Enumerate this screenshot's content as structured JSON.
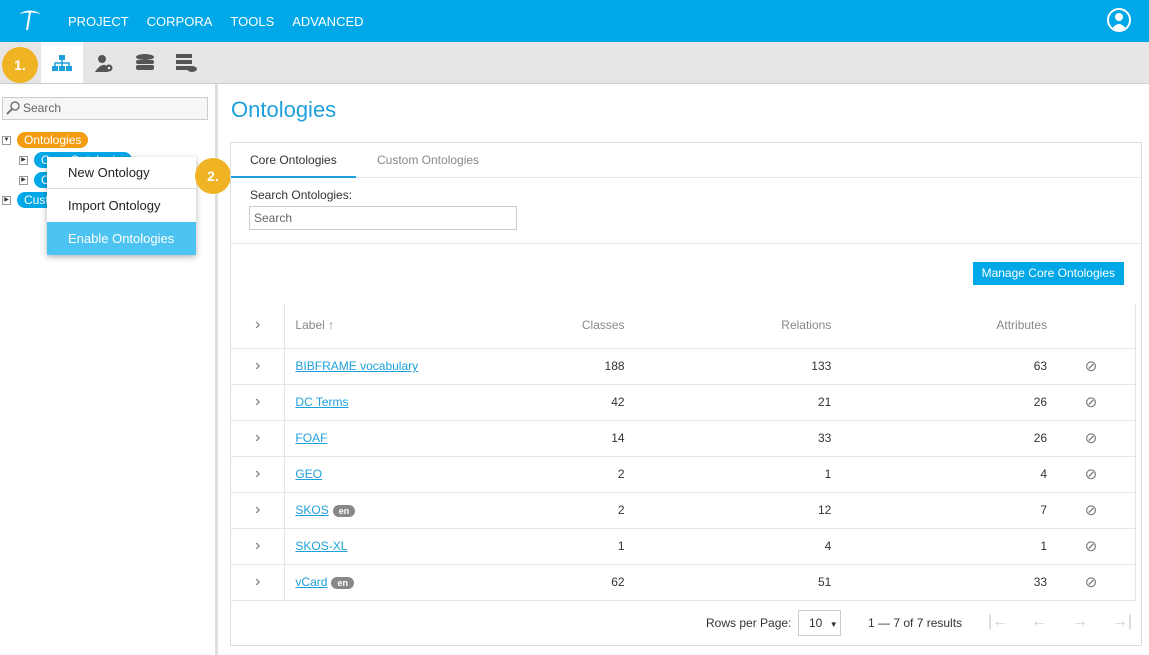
{
  "header": {
    "nav": [
      "PROJECT",
      "CORPORA",
      "TOOLS",
      "ADVANCED"
    ]
  },
  "toolbar": {
    "badge": "1.",
    "icons": [
      "hierarchy-icon",
      "user-settings-icon",
      "database-icon",
      "server-cloud-icon"
    ]
  },
  "sidebar": {
    "search_placeholder": "Search",
    "tree": {
      "root": "Ontologies",
      "children": [
        "Core Ontologies",
        "Custom Ontologies"
      ],
      "second_root": "Custom Vocabularies"
    }
  },
  "context_menu": {
    "items": [
      "New Ontology",
      "Import Ontology",
      "Enable Ontologies"
    ],
    "badge": "2."
  },
  "main": {
    "title": "Ontologies",
    "tabs": [
      "Core Ontologies",
      "Custom Ontologies"
    ],
    "search_label": "Search Ontologies:",
    "search_placeholder": "Search",
    "manage_button": "Manage Core Ontologies",
    "columns": {
      "label": "Label ↑",
      "classes": "Classes",
      "relations": "Relations",
      "attributes": "Attributes"
    },
    "rows": [
      {
        "label": "BIBFRAME vocabulary",
        "lang": "",
        "classes": "188",
        "relations": "133",
        "attributes": "63"
      },
      {
        "label": "DC Terms",
        "lang": "",
        "classes": "42",
        "relations": "21",
        "attributes": "26"
      },
      {
        "label": "FOAF",
        "lang": "",
        "classes": "14",
        "relations": "33",
        "attributes": "26"
      },
      {
        "label": "GEO",
        "lang": "",
        "classes": "2",
        "relations": "1",
        "attributes": "4"
      },
      {
        "label": "SKOS",
        "lang": "en",
        "classes": "2",
        "relations": "12",
        "attributes": "7"
      },
      {
        "label": "SKOS-XL",
        "lang": "",
        "classes": "1",
        "relations": "4",
        "attributes": "1"
      },
      {
        "label": "vCard",
        "lang": "en",
        "classes": "62",
        "relations": "51",
        "attributes": "33"
      }
    ],
    "pager": {
      "rows_label": "Rows per Page:",
      "rows_value": "10",
      "results": "1 — 7 of 7 results"
    }
  },
  "colors": {
    "brand": "#00a8e8",
    "badge": "#f0b323",
    "root_pill": "#f39c12"
  }
}
